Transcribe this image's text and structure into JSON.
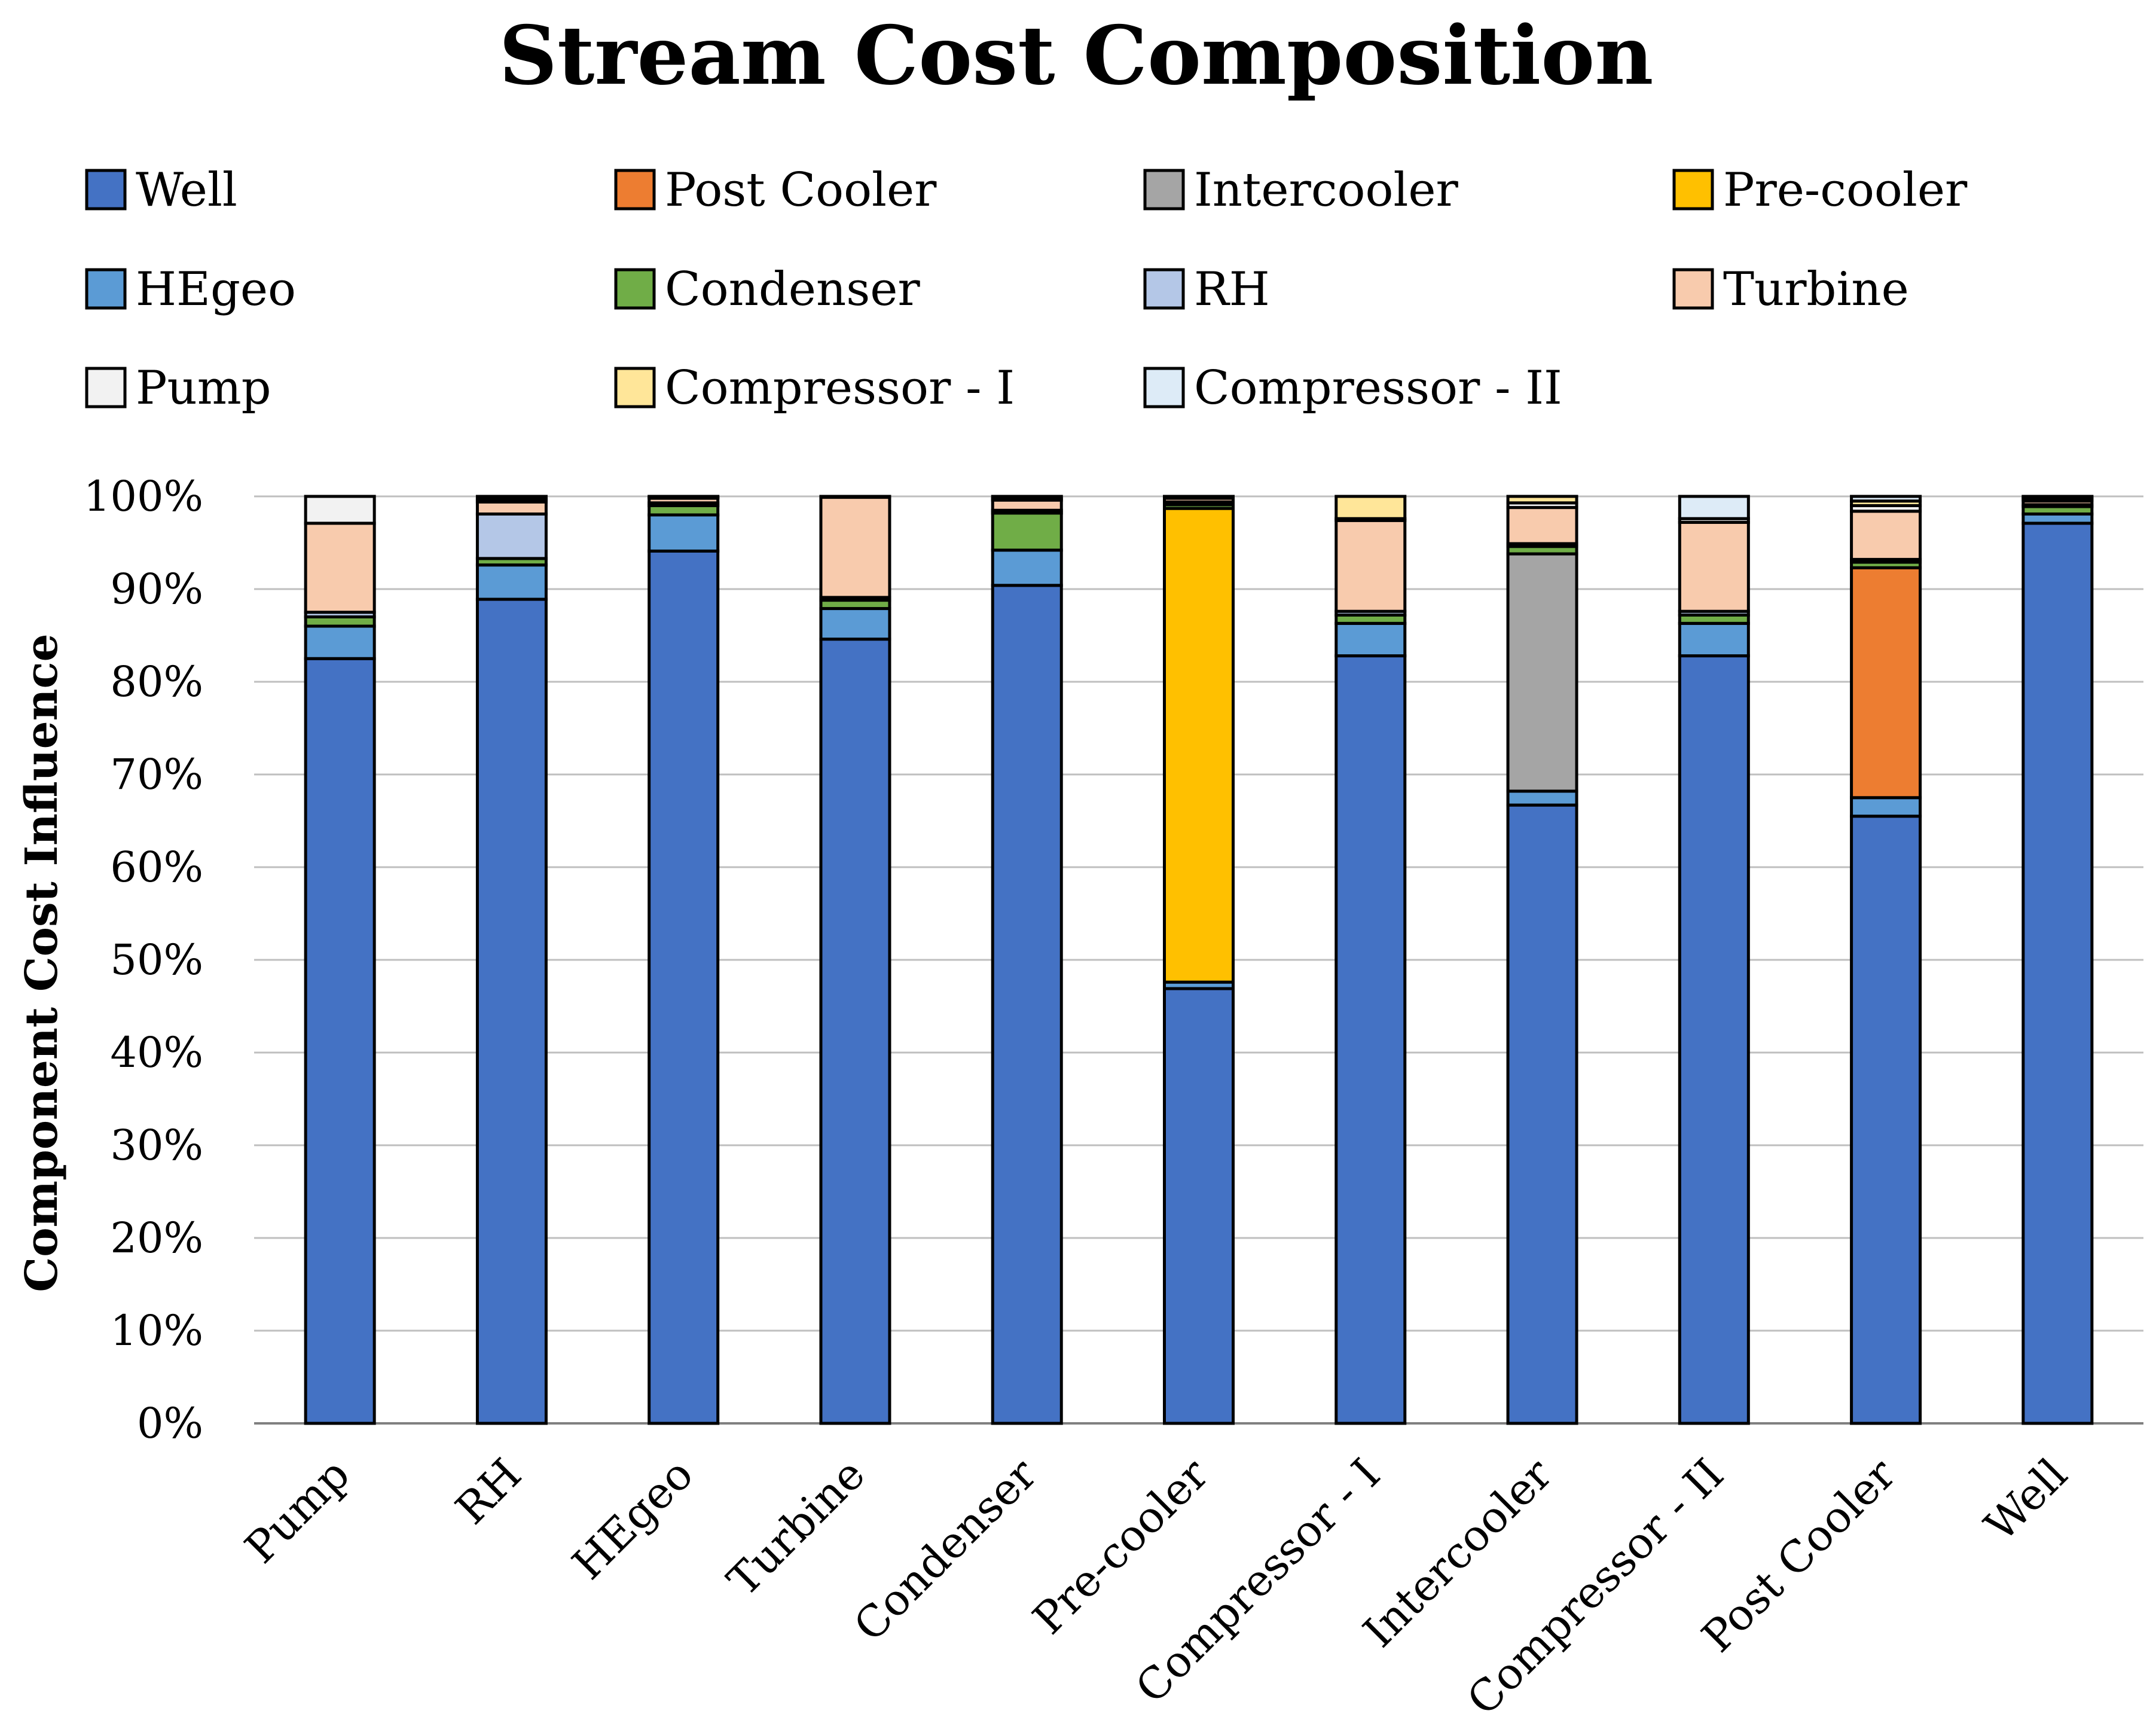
{
  "chart_data": {
    "type": "bar",
    "stacked": true,
    "normalized": true,
    "title": "Stream Cost Composition",
    "xlabel": "",
    "ylabel": "Component Cost Influence",
    "ylim": [
      0,
      100
    ],
    "y_ticks": [
      "0%",
      "10%",
      "20%",
      "30%",
      "40%",
      "50%",
      "60%",
      "70%",
      "80%",
      "90%",
      "100%"
    ],
    "grid": true,
    "legend_position": "top",
    "categories": [
      "Pump",
      "RH",
      "HEgeo",
      "Turbine",
      "Condenser",
      "Pre-cooler",
      "Compressor - I",
      "Intercooler",
      "Compressor - II",
      "Post Cooler",
      "Well"
    ],
    "series": [
      {
        "name": "Well",
        "color": "#4472C4",
        "values": [
          82.5,
          88.9,
          94.1,
          84.6,
          90.4,
          46.9,
          82.8,
          66.7,
          82.8,
          65.5,
          97.1
        ]
      },
      {
        "name": "HEgeo",
        "color": "#5B9BD5",
        "values": [
          3.5,
          3.7,
          3.9,
          3.3,
          3.8,
          0.7,
          3.5,
          1.5,
          3.5,
          2.0,
          1.0
        ]
      },
      {
        "name": "Post Cooler",
        "color": "#ED7D31",
        "values": [
          0,
          0,
          0,
          0,
          0,
          0,
          0,
          0,
          0,
          24.8,
          0
        ]
      },
      {
        "name": "Intercooler",
        "color": "#A5A5A5",
        "values": [
          0,
          0,
          0,
          0,
          0,
          0,
          0,
          25.6,
          0,
          0,
          0
        ]
      },
      {
        "name": "Pre-cooler",
        "color": "#FFC000",
        "values": [
          0,
          0,
          0,
          0,
          0,
          51.1,
          0,
          0,
          0,
          0,
          0
        ]
      },
      {
        "name": "Condenser",
        "color": "#70AD47",
        "values": [
          1.0,
          0.7,
          1.0,
          0.9,
          4.0,
          0.4,
          0.9,
          0.8,
          0.9,
          0.6,
          0.8
        ]
      },
      {
        "name": "RH",
        "color": "#B4C7E7",
        "values": [
          0.5,
          4.8,
          0.3,
          0.3,
          0.3,
          0.3,
          0.4,
          0.3,
          0.4,
          0.3,
          0.2
        ]
      },
      {
        "name": "Turbine",
        "color": "#F8CBAD",
        "values": [
          9.6,
          1.3,
          0.5,
          10.8,
          1.1,
          0.4,
          9.8,
          3.9,
          9.6,
          5.2,
          0.4
        ]
      },
      {
        "name": "Pump",
        "color": "#F2F2F2",
        "values": [
          2.9,
          0.3,
          0.1,
          0.1,
          0.2,
          0.1,
          0.2,
          0.5,
          0.4,
          0.6,
          0.2
        ]
      },
      {
        "name": "Compressor - I",
        "color": "#FFE699",
        "values": [
          0,
          0.3,
          0.1,
          0,
          0.2,
          0.1,
          2.4,
          0.7,
          0,
          0.5,
          0.2
        ]
      },
      {
        "name": "Compressor - II",
        "color": "#DDEBF7",
        "values": [
          0,
          0,
          0,
          0,
          0,
          0,
          0,
          0,
          2.4,
          0.5,
          0.1
        ]
      }
    ],
    "legend_order": [
      "Well",
      "Post Cooler",
      "Intercooler",
      "Pre-cooler",
      "HEgeo",
      "Condenser",
      "RH",
      "Turbine",
      "Pump",
      "Compressor - I",
      "Compressor - II"
    ]
  }
}
